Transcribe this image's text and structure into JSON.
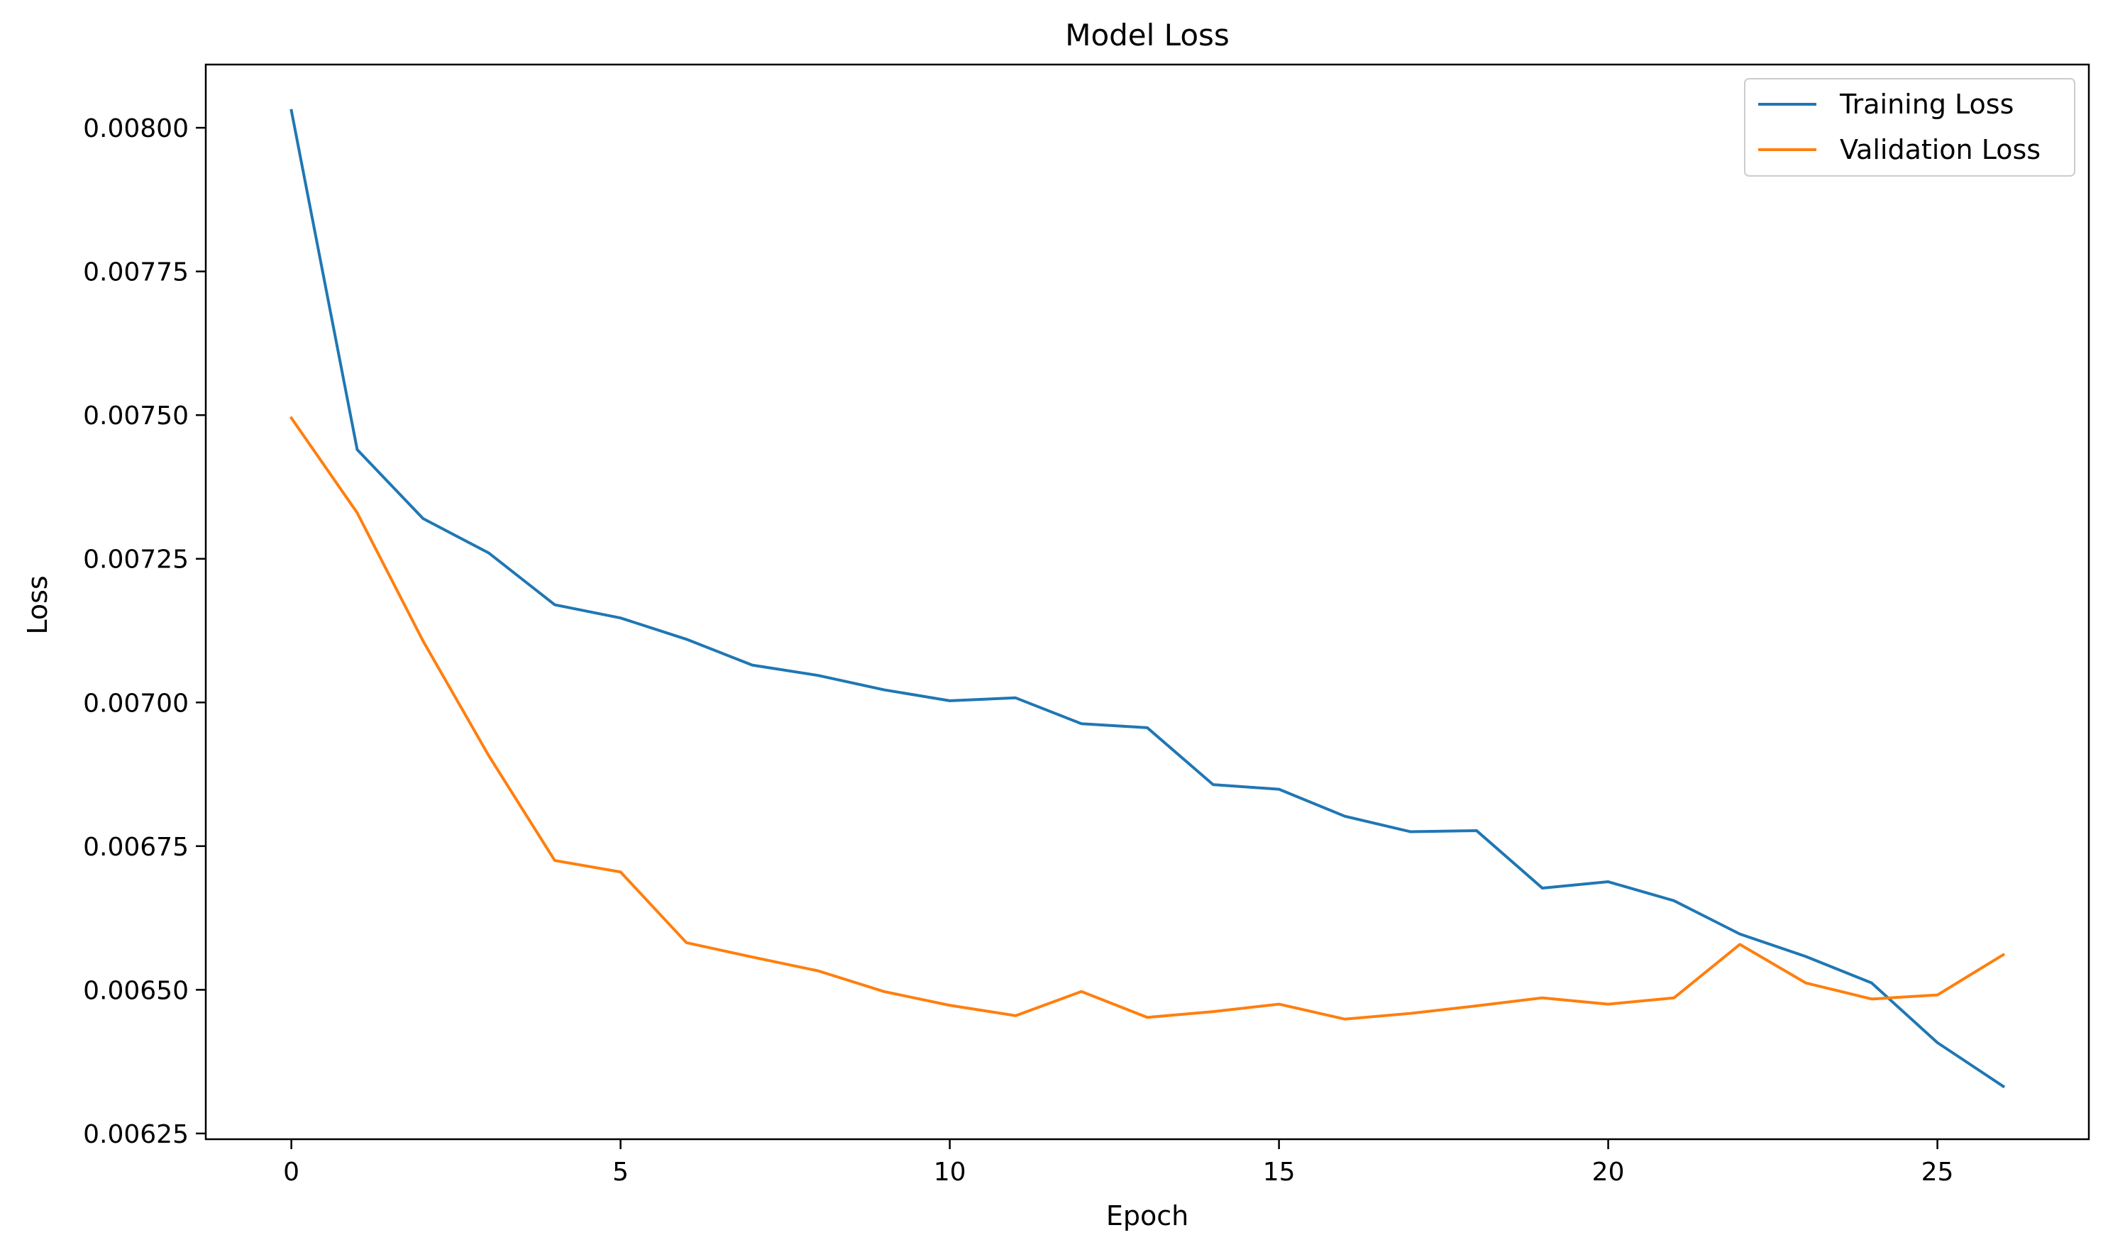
{
  "chart_data": {
    "type": "line",
    "title": "Model Loss",
    "xlabel": "Epoch",
    "ylabel": "Loss",
    "xlim": [
      -1.3,
      27.3
    ],
    "ylim": [
      0.00624,
      0.00811
    ],
    "x_ticks": [
      0,
      5,
      10,
      15,
      20,
      25
    ],
    "x_tick_labels": [
      "0",
      "5",
      "10",
      "15",
      "20",
      "25"
    ],
    "y_ticks": [
      0.00625,
      0.0065,
      0.00675,
      0.007,
      0.00725,
      0.0075,
      0.00775,
      0.008
    ],
    "y_tick_labels": [
      "0.00625",
      "0.00650",
      "0.00675",
      "0.00700",
      "0.00725",
      "0.00750",
      "0.00775",
      "0.00800"
    ],
    "grid": false,
    "legend_position": "top-right",
    "x": [
      0,
      1,
      2,
      3,
      4,
      5,
      6,
      7,
      8,
      9,
      10,
      11,
      12,
      13,
      14,
      15,
      16,
      17,
      18,
      19,
      20,
      21,
      22,
      23,
      24,
      25,
      26
    ],
    "series": [
      {
        "name": "Training Loss",
        "color": "#1f77b4",
        "values": [
          0.00803,
          0.00744,
          0.00732,
          0.00726,
          0.00717,
          0.007147,
          0.00711,
          0.007065,
          0.007047,
          0.007022,
          0.007003,
          0.007008,
          0.006963,
          0.006956,
          0.006857,
          0.006849,
          0.006802,
          0.006775,
          0.006777,
          0.006677,
          0.006688,
          0.006655,
          0.006597,
          0.006558,
          0.006512,
          0.006408,
          0.006332
        ]
      },
      {
        "name": "Validation Loss",
        "color": "#ff7f0e",
        "values": [
          0.007495,
          0.00733,
          0.007107,
          0.006907,
          0.006725,
          0.006705,
          0.006582,
          0.006557,
          0.006533,
          0.006497,
          0.006473,
          0.006455,
          0.006497,
          0.006452,
          0.006462,
          0.006475,
          0.006449,
          0.006459,
          0.006472,
          0.006486,
          0.006475,
          0.006486,
          0.006579,
          0.006512,
          0.006484,
          0.006491,
          0.006561
        ]
      }
    ]
  }
}
